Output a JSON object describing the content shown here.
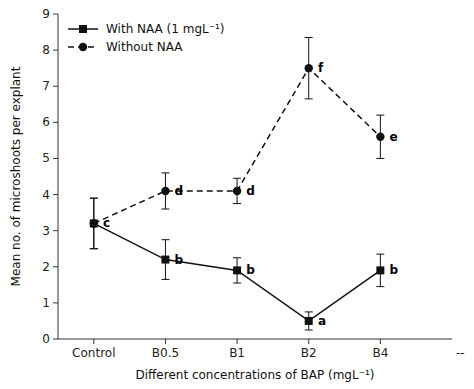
{
  "chart_data": {
    "type": "line",
    "xlabel": "Different concentrations of BAP (mgL⁻¹)",
    "ylabel": "Mean no. of microshoots per explant",
    "categories": [
      "Control",
      "B0.5",
      "B1",
      "B2",
      "B4"
    ],
    "series": [
      {
        "name": "With NAA (1 mgL⁻¹)",
        "color": "#111111",
        "marker": "square",
        "line_style": "solid",
        "values": [
          3.2,
          2.2,
          1.9,
          0.5,
          1.9
        ],
        "errors": [
          0.7,
          0.55,
          0.35,
          0.25,
          0.45
        ],
        "labels": [
          "c",
          "b",
          "b",
          "a",
          "b"
        ]
      },
      {
        "name": "Without NAA",
        "color": "#111111",
        "marker": "circle",
        "line_style": "dashed",
        "values": [
          3.2,
          4.1,
          4.1,
          7.5,
          5.6
        ],
        "errors": [
          0.7,
          0.5,
          0.35,
          0.85,
          0.6
        ],
        "labels": [
          null,
          "d",
          "d",
          "f",
          "e"
        ]
      }
    ],
    "annotations": [
      "--"
    ],
    "ylim": [
      0,
      9
    ],
    "yticks": [
      0,
      1,
      2,
      3,
      4,
      5,
      6,
      7,
      8,
      9
    ],
    "grid": false,
    "legend": "upper left"
  }
}
